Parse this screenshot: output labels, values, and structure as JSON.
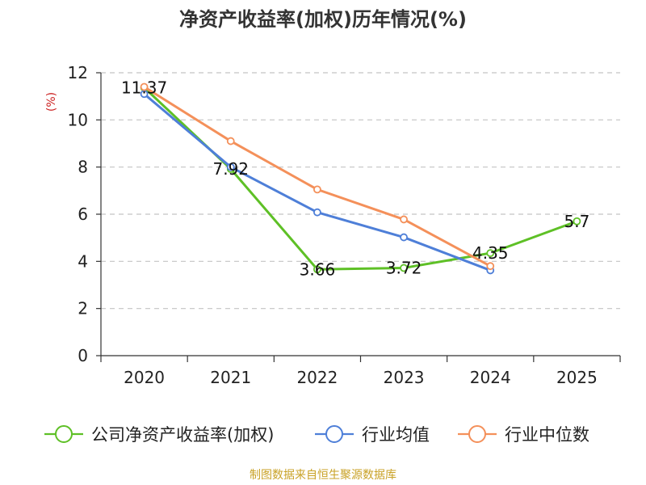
{
  "chart_data": {
    "type": "line",
    "title": "净资产收益率(加权)历年情况(%)",
    "ylabel": "(%)",
    "xlabel": "",
    "categories": [
      "2020",
      "2021",
      "2022",
      "2023",
      "2024",
      "2025"
    ],
    "ylim": [
      0,
      12
    ],
    "yticks": [
      0,
      2,
      4,
      6,
      8,
      10,
      12
    ],
    "grid": true,
    "legend_position": "bottom",
    "series": [
      {
        "name": "公司净资产收益率(加权)",
        "color": "#5ec026",
        "values": [
          11.37,
          7.92,
          3.66,
          3.72,
          4.35,
          5.7
        ],
        "labels": [
          "11.37",
          "7.92",
          "3.66",
          "3.72",
          "4.35",
          "5.7"
        ]
      },
      {
        "name": "行业均值",
        "color": "#4e7fd8",
        "values": [
          11.1,
          8.0,
          6.08,
          5.02,
          3.62,
          null
        ]
      },
      {
        "name": "行业中位数",
        "color": "#f4905a",
        "values": [
          11.4,
          9.1,
          7.05,
          5.78,
          3.8,
          null
        ]
      }
    ]
  },
  "footer": {
    "source": "制图数据来自恒生聚源数据库"
  }
}
